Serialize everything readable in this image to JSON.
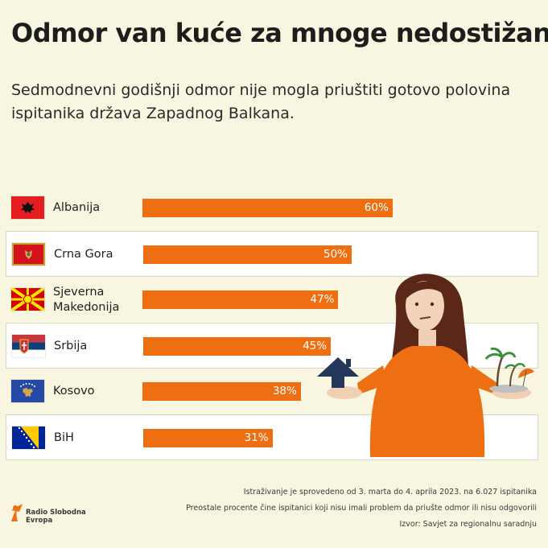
{
  "title": "Odmor van kuće za mnoge nedostižan",
  "subtitle": "Sedmodnevni godišnji odmor nije mogla priuštiti gotovo polovina ispitanika država Zapadnog Balkana.",
  "chart_data": {
    "type": "bar",
    "orientation": "horizontal",
    "categories": [
      "Albanija",
      "Crna Gora",
      "Sjeverna Makedonija",
      "Srbija",
      "Kosovo",
      "BiH"
    ],
    "values": [
      60,
      50,
      47,
      45,
      38,
      31
    ],
    "value_labels": [
      "60%",
      "50%",
      "47%",
      "45%",
      "38%",
      "31%"
    ],
    "bar_color": "#ee6f12",
    "xlim": [
      0,
      100
    ]
  },
  "flags": [
    "flag-albania",
    "flag-montenegro",
    "flag-north-macedonia",
    "flag-serbia",
    "flag-kosovo",
    "flag-bih"
  ],
  "notes": [
    "Istraživanje je sprovedeno od 3. marta do 4. aprila 2023. na 6.027 ispitanika",
    "Preostale procente čine ispitanici koji nisu imali problem da priušte odmor ili nisu odgovorili",
    "Izvor: Savjet za regionalnu saradnju"
  ],
  "logo": {
    "text": "Radio Slobodna Evropa"
  },
  "colors": {
    "background": "#f8f5e0",
    "accent": "#ee6f12"
  }
}
